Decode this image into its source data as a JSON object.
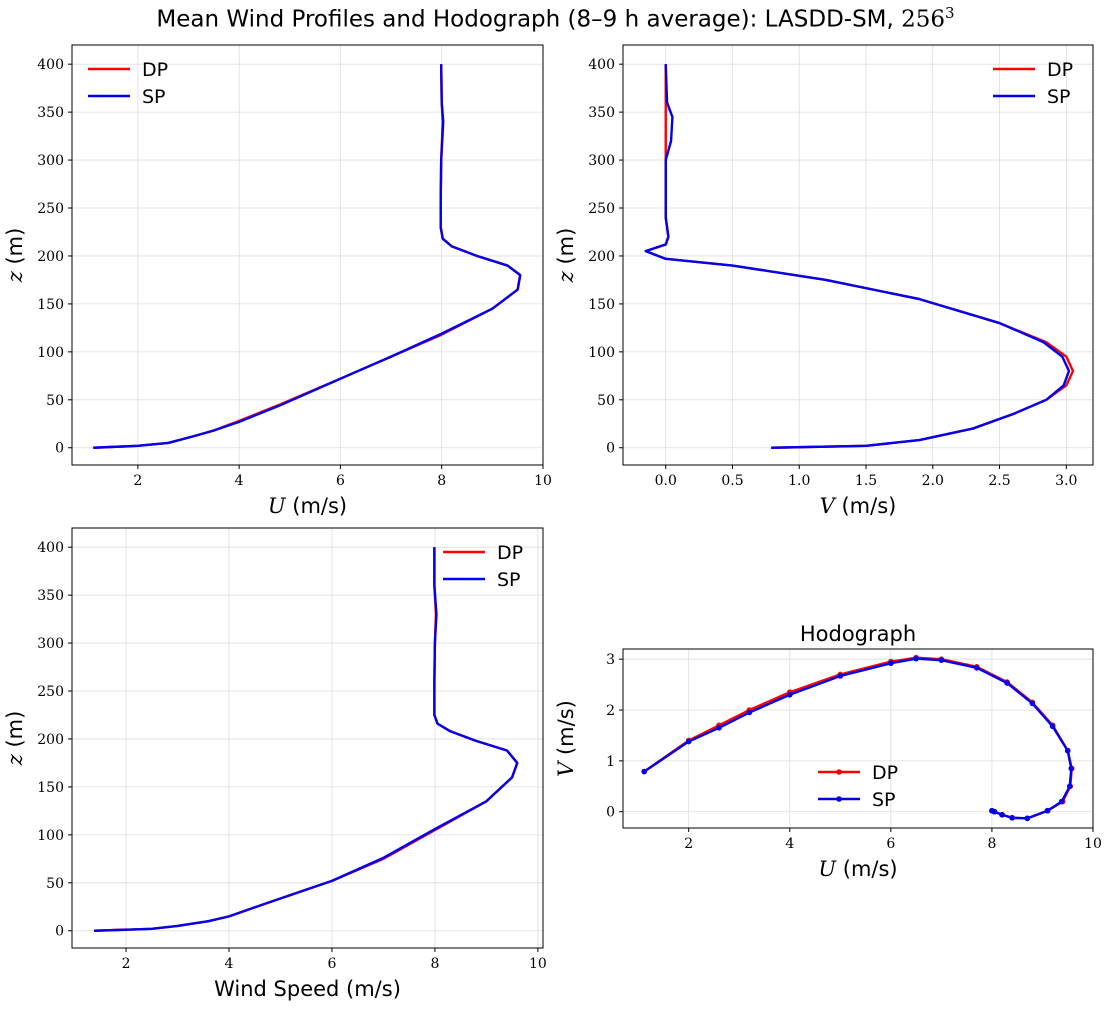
{
  "figure": {
    "title_text": "Mean Wind Profiles and Hodograph (8–9 h average): LASDD-SM, ",
    "title_math": "256",
    "title_sup": "3"
  },
  "colors": {
    "DP": "#ff0000",
    "SP": "#0000ee",
    "grid": "#dddddd"
  },
  "chart_data": [
    {
      "id": "u_profile",
      "type": "line",
      "title": "",
      "xlabel_var": "U",
      "xlabel_unit": " (m/s)",
      "ylabel_var": "z",
      "ylabel_unit": " (m)",
      "xlim": [
        0.7,
        10.0
      ],
      "ylim": [
        -18,
        420
      ],
      "xticks": [
        2,
        4,
        6,
        8,
        10
      ],
      "yticks": [
        0,
        50,
        100,
        150,
        200,
        250,
        300,
        350,
        400
      ],
      "grid": true,
      "legend": "top-left",
      "series": [
        {
          "name": "DP",
          "points": [
            [
              1.12,
              0
            ],
            [
              2.0,
              2
            ],
            [
              2.6,
              5
            ],
            [
              3.1,
              12
            ],
            [
              3.5,
              18
            ],
            [
              4.0,
              28
            ],
            [
              4.8,
              45
            ],
            [
              6.0,
              72
            ],
            [
              7.0,
              95
            ],
            [
              8.0,
              118
            ],
            [
              9.0,
              145
            ],
            [
              9.5,
              165
            ],
            [
              9.55,
              180
            ],
            [
              9.3,
              190
            ],
            [
              8.7,
              200
            ],
            [
              8.2,
              210
            ],
            [
              8.02,
              218
            ],
            [
              7.98,
              230
            ],
            [
              7.98,
              260
            ],
            [
              7.99,
              300
            ],
            [
              8.02,
              340
            ],
            [
              8.0,
              360
            ],
            [
              7.99,
              400
            ]
          ]
        },
        {
          "name": "SP",
          "points": [
            [
              1.12,
              0
            ],
            [
              2.0,
              2
            ],
            [
              2.6,
              5
            ],
            [
              3.1,
              12
            ],
            [
              3.5,
              18
            ],
            [
              4.0,
              27
            ],
            [
              4.8,
              44
            ],
            [
              6.0,
              72
            ],
            [
              7.0,
              95
            ],
            [
              8.0,
              119
            ],
            [
              9.0,
              145
            ],
            [
              9.5,
              165
            ],
            [
              9.55,
              180
            ],
            [
              9.3,
              190
            ],
            [
              8.7,
              200
            ],
            [
              8.2,
              210
            ],
            [
              8.02,
              218
            ],
            [
              7.98,
              230
            ],
            [
              7.98,
              260
            ],
            [
              7.99,
              300
            ],
            [
              8.03,
              340
            ],
            [
              8.0,
              360
            ],
            [
              7.99,
              400
            ]
          ]
        }
      ]
    },
    {
      "id": "v_profile",
      "type": "line",
      "title": "",
      "xlabel_var": "V",
      "xlabel_unit": " (m/s)",
      "ylabel_var": "z",
      "ylabel_unit": " (m)",
      "xlim": [
        -0.32,
        3.2
      ],
      "ylim": [
        -18,
        420
      ],
      "xticks": [
        0.0,
        0.5,
        1.0,
        1.5,
        2.0,
        2.5,
        3.0
      ],
      "yticks": [
        0,
        50,
        100,
        150,
        200,
        250,
        300,
        350,
        400
      ],
      "grid": true,
      "legend": "top-right",
      "series": [
        {
          "name": "DP",
          "points": [
            [
              0.79,
              0
            ],
            [
              1.5,
              2
            ],
            [
              1.9,
              8
            ],
            [
              2.3,
              20
            ],
            [
              2.6,
              35
            ],
            [
              2.85,
              50
            ],
            [
              3.0,
              65
            ],
            [
              3.05,
              80
            ],
            [
              3.0,
              95
            ],
            [
              2.85,
              110
            ],
            [
              2.5,
              130
            ],
            [
              1.9,
              155
            ],
            [
              1.2,
              175
            ],
            [
              0.5,
              190
            ],
            [
              0.0,
              197
            ],
            [
              -0.15,
              205
            ],
            [
              0.0,
              212
            ],
            [
              0.02,
              220
            ],
            [
              0.0,
              240
            ],
            [
              0.0,
              300
            ],
            [
              0.0,
              330
            ],
            [
              0.0,
              360
            ],
            [
              0.0,
              400
            ]
          ]
        },
        {
          "name": "SP",
          "points": [
            [
              0.79,
              0
            ],
            [
              1.5,
              2
            ],
            [
              1.9,
              8
            ],
            [
              2.3,
              20
            ],
            [
              2.6,
              35
            ],
            [
              2.85,
              50
            ],
            [
              2.98,
              65
            ],
            [
              3.02,
              80
            ],
            [
              2.97,
              95
            ],
            [
              2.83,
              110
            ],
            [
              2.5,
              130
            ],
            [
              1.9,
              155
            ],
            [
              1.2,
              175
            ],
            [
              0.5,
              190
            ],
            [
              0.0,
              197
            ],
            [
              -0.15,
              205
            ],
            [
              0.0,
              212
            ],
            [
              0.02,
              220
            ],
            [
              0.0,
              240
            ],
            [
              0.0,
              300
            ],
            [
              0.04,
              320
            ],
            [
              0.05,
              345
            ],
            [
              0.01,
              360
            ],
            [
              0.0,
              400
            ]
          ]
        }
      ]
    },
    {
      "id": "speed_profile",
      "type": "line",
      "title": "",
      "xlabel_var": "",
      "xlabel_unit": "Wind Speed (m/s)",
      "ylabel_var": "z",
      "ylabel_unit": " (m)",
      "xlim": [
        0.95,
        10.1
      ],
      "ylim": [
        -18,
        420
      ],
      "xticks": [
        2,
        4,
        6,
        8,
        10
      ],
      "yticks": [
        0,
        50,
        100,
        150,
        200,
        250,
        300,
        350,
        400
      ],
      "grid": true,
      "legend": "top-right",
      "series": [
        {
          "name": "DP",
          "points": [
            [
              1.38,
              0
            ],
            [
              2.5,
              2
            ],
            [
              3.0,
              5
            ],
            [
              3.6,
              10
            ],
            [
              4.0,
              15
            ],
            [
              4.8,
              30
            ],
            [
              6.0,
              52
            ],
            [
              7.0,
              75
            ],
            [
              8.0,
              105
            ],
            [
              9.0,
              135
            ],
            [
              9.5,
              160
            ],
            [
              9.6,
              175
            ],
            [
              9.4,
              188
            ],
            [
              8.8,
              198
            ],
            [
              8.3,
              208
            ],
            [
              8.05,
              216
            ],
            [
              7.99,
              225
            ],
            [
              7.99,
              260
            ],
            [
              8.0,
              300
            ],
            [
              8.02,
              330
            ],
            [
              7.99,
              360
            ],
            [
              7.99,
              400
            ]
          ]
        },
        {
          "name": "SP",
          "points": [
            [
              1.38,
              0
            ],
            [
              2.5,
              2
            ],
            [
              3.0,
              5
            ],
            [
              3.6,
              10
            ],
            [
              4.0,
              15
            ],
            [
              4.8,
              30
            ],
            [
              6.0,
              52
            ],
            [
              7.0,
              76
            ],
            [
              8.0,
              106
            ],
            [
              9.0,
              135
            ],
            [
              9.5,
              160
            ],
            [
              9.6,
              175
            ],
            [
              9.4,
              188
            ],
            [
              8.8,
              198
            ],
            [
              8.3,
              208
            ],
            [
              8.05,
              216
            ],
            [
              7.99,
              225
            ],
            [
              7.99,
              260
            ],
            [
              8.0,
              300
            ],
            [
              8.03,
              330
            ],
            [
              7.99,
              360
            ],
            [
              7.99,
              400
            ]
          ]
        }
      ]
    },
    {
      "id": "hodograph",
      "type": "line",
      "title": "Hodograph",
      "xlabel_var": "U",
      "xlabel_unit": " (m/s)",
      "ylabel_var": "V",
      "ylabel_unit": " (m/s)",
      "xlim": [
        0.7,
        10.0
      ],
      "ylim": [
        -0.32,
        3.2
      ],
      "xticks": [
        2,
        4,
        6,
        8,
        10
      ],
      "yticks": [
        0,
        1,
        2,
        3
      ],
      "grid": true,
      "legend": "lower-center",
      "series": [
        {
          "name": "DP",
          "points": [
            [
              1.12,
              0.79
            ],
            [
              2.0,
              1.4
            ],
            [
              2.6,
              1.7
            ],
            [
              3.2,
              2.0
            ],
            [
              4.0,
              2.35
            ],
            [
              5.0,
              2.7
            ],
            [
              6.0,
              2.95
            ],
            [
              6.5,
              3.03
            ],
            [
              7.0,
              3.0
            ],
            [
              7.7,
              2.85
            ],
            [
              8.3,
              2.55
            ],
            [
              8.8,
              2.15
            ],
            [
              9.2,
              1.7
            ],
            [
              9.5,
              1.2
            ],
            [
              9.58,
              0.85
            ],
            [
              9.55,
              0.5
            ],
            [
              9.4,
              0.2
            ],
            [
              9.1,
              0.02
            ],
            [
              8.7,
              -0.13
            ],
            [
              8.4,
              -0.12
            ],
            [
              8.2,
              -0.06
            ],
            [
              8.05,
              0.0
            ],
            [
              8.0,
              0.02
            ]
          ]
        },
        {
          "name": "SP",
          "points": [
            [
              1.12,
              0.79
            ],
            [
              2.0,
              1.38
            ],
            [
              2.6,
              1.65
            ],
            [
              3.2,
              1.95
            ],
            [
              4.0,
              2.3
            ],
            [
              5.0,
              2.67
            ],
            [
              6.0,
              2.92
            ],
            [
              6.5,
              3.01
            ],
            [
              7.0,
              2.98
            ],
            [
              7.7,
              2.83
            ],
            [
              8.3,
              2.53
            ],
            [
              8.8,
              2.13
            ],
            [
              9.2,
              1.68
            ],
            [
              9.5,
              1.2
            ],
            [
              9.57,
              0.85
            ],
            [
              9.54,
              0.5
            ],
            [
              9.38,
              0.2
            ],
            [
              9.1,
              0.02
            ],
            [
              8.7,
              -0.13
            ],
            [
              8.4,
              -0.12
            ],
            [
              8.2,
              -0.06
            ],
            [
              8.05,
              0.0
            ],
            [
              8.0,
              0.02
            ]
          ]
        }
      ]
    }
  ]
}
